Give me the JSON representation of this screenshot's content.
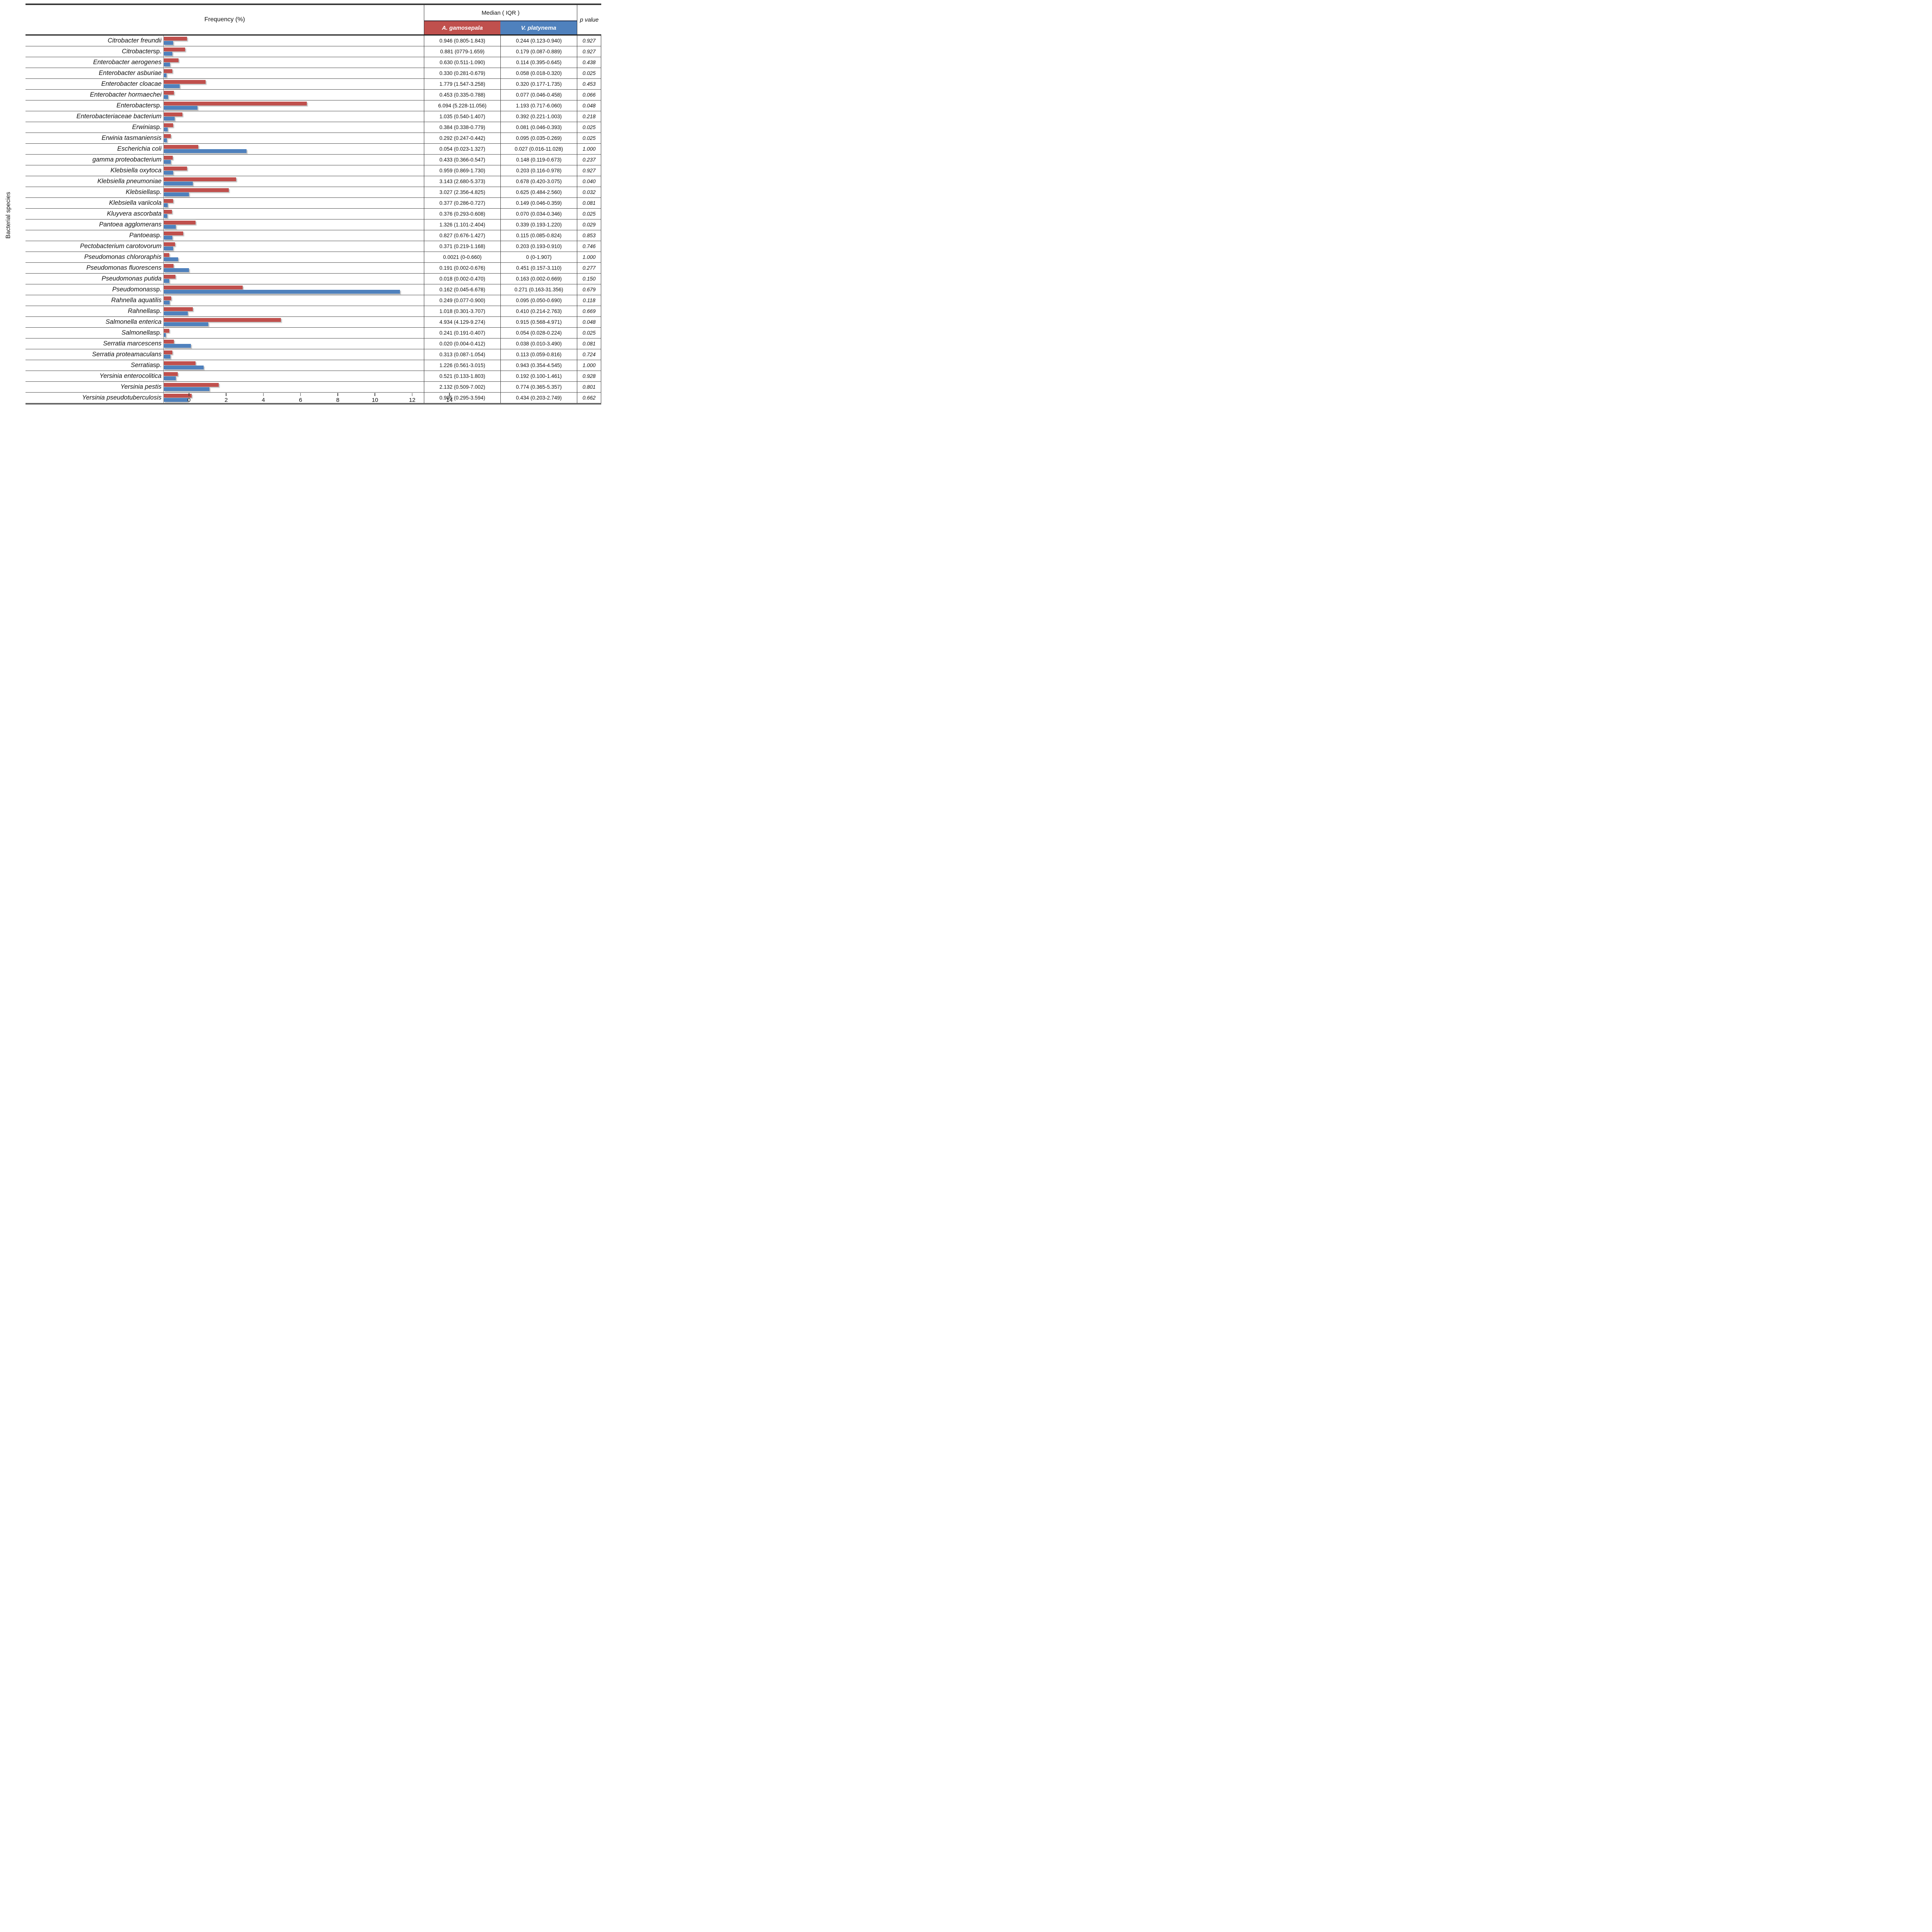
{
  "y_axis_label": "Bacterial species",
  "header": {
    "frequency_label": "Frequency (%)",
    "median_label": "Median ( IQR )",
    "group_a_label": "A. gamosepala",
    "group_b_label": "V. platynema",
    "p_label": "p value"
  },
  "colors": {
    "group_a": "#C0504D",
    "group_b": "#4F81BD",
    "axis_line": "#7f7f7f",
    "row_line": "#474747"
  },
  "x_axis": {
    "min": 0,
    "max": 14,
    "ticks": [
      0,
      2,
      4,
      6,
      8,
      10,
      12,
      14
    ]
  },
  "chart_data": {
    "type": "bar",
    "orientation": "horizontal",
    "title": "Frequency (%)",
    "xlabel": "Frequency (%)",
    "ylabel": "Bacterial species",
    "xlim": [
      0,
      14
    ],
    "grid": false,
    "categories": [
      "Citrobacter freundii",
      "Citrobacter sp.",
      "Enterobacter aerogenes",
      "Enterobacter asburiae",
      "Enterobacter cloacae",
      "Enterobacter hormaechei",
      "Enterobacter sp.",
      "Enterobacteriaceae bacterium",
      "Erwinia sp.",
      "Erwinia tasmaniensis",
      "Escherichia coli",
      "gamma proteobacterium",
      "Klebsiella oxytoca",
      "Klebsiella pneumoniae",
      "Klebsiella sp.",
      "Klebsiella variicola",
      "Kluyvera ascorbata",
      "Pantoea agglomerans",
      "Pantoea sp.",
      "Pectobacterium carotovorum",
      "Pseudomonas chlororaphis",
      "Pseudomonas fluorescens",
      "Pseudomonas putida",
      "Pseudomonas sp.",
      "Rahnella aquatilis",
      "Rahnella sp.",
      "Salmonella enterica",
      "Salmonella sp.",
      "Serratia marcescens",
      "Serratia proteamaculans",
      "Serratia sp.",
      "Yersinia enterocolitica",
      "Yersinia pestis",
      "Yersinia pseudotuberculosis"
    ],
    "series": [
      {
        "name": "A. gamosepala",
        "color": "#C0504D",
        "values": [
          1.25,
          1.15,
          0.8,
          0.45,
          2.25,
          0.55,
          7.7,
          1.0,
          0.5,
          0.37,
          1.85,
          0.47,
          1.25,
          3.9,
          3.5,
          0.5,
          0.44,
          1.7,
          1.05,
          0.6,
          0.3,
          0.53,
          0.63,
          4.25,
          0.4,
          1.55,
          6.3,
          0.3,
          0.55,
          0.45,
          1.7,
          0.75,
          2.95,
          1.5
        ]
      },
      {
        "name": "V. platynema",
        "color": "#4F81BD",
        "values": [
          0.5,
          0.45,
          0.33,
          0.15,
          0.85,
          0.22,
          1.8,
          0.58,
          0.2,
          0.17,
          4.45,
          0.37,
          0.5,
          1.55,
          1.35,
          0.2,
          0.19,
          0.65,
          0.45,
          0.5,
          0.78,
          1.35,
          0.3,
          12.7,
          0.32,
          1.3,
          2.4,
          0.1,
          1.45,
          0.35,
          2.15,
          0.65,
          2.45,
          1.3
        ]
      }
    ]
  },
  "rows": [
    {
      "name_italic": "Citrobacter freundii",
      "name_roman": "",
      "median_a": "0.946 (0.805-1.843)",
      "median_b": "0.244 (0.123-0.940)",
      "p": "0.927"
    },
    {
      "name_italic": "Citrobacter",
      "name_roman": " sp.",
      "median_a": "0.881 (0779-1.659)",
      "median_b": "0.179 (0.087-0.889)",
      "p": "0.927"
    },
    {
      "name_italic": "Enterobacter aerogenes",
      "name_roman": "",
      "median_a": "0.630 (0.511-1.090)",
      "median_b": "0.114 (0.395-0.645)",
      "p": "0.438"
    },
    {
      "name_italic": "Enterobacter asburiae",
      "name_roman": "",
      "median_a": "0.330 (0.281-0.679)",
      "median_b": "0.058 (0.018-0.320)",
      "p": "0.025"
    },
    {
      "name_italic": "Enterobacter cloacae",
      "name_roman": "",
      "median_a": "1.779 (1.547-3.258)",
      "median_b": "0.320 (0.177-1.735)",
      "p": "0.453"
    },
    {
      "name_italic": "Enterobacter hormaechei",
      "name_roman": "",
      "median_a": "0.453 (0.335-0.788)",
      "median_b": "0.077 (0.046-0.458)",
      "p": "0.066"
    },
    {
      "name_italic": "Enterobacter",
      "name_roman": " sp.",
      "median_a": "6.094 (5.228-11.056)",
      "median_b": "1.193 (0.717-6.060)",
      "p": "0.048"
    },
    {
      "name_italic": "Enterobacteriaceae bacterium",
      "name_roman": "",
      "median_a": "1.035 (0.540-1.407)",
      "median_b": "0.392 (0.221-1.003)",
      "p": "0.218"
    },
    {
      "name_italic": "Erwinia",
      "name_roman": " sp.",
      "median_a": "0.384 (0.338-0.779)",
      "median_b": "0.081 (0.046-0.393)",
      "p": "0.025"
    },
    {
      "name_italic": "Erwinia tasmaniensis",
      "name_roman": "",
      "median_a": "0.292 (0.247-0.442)",
      "median_b": "0.095 (0.035-0.269)",
      "p": "0.025"
    },
    {
      "name_italic": "Escherichia coli",
      "name_roman": "",
      "median_a": "0.054 (0.023-1.327)",
      "median_b": "0.027 (0.016-11.028)",
      "p": "1.000"
    },
    {
      "name_italic": "gamma proteobacterium",
      "name_roman": "",
      "median_a": "0.433 (0.366-0.547)",
      "median_b": "0.148 (0.119-0.673)",
      "p": "0.237"
    },
    {
      "name_italic": "Klebsiella oxytoca",
      "name_roman": "",
      "median_a": "0.959 (0.869-1.730)",
      "median_b": "0.203 (0.116-0.978)",
      "p": "0.927"
    },
    {
      "name_italic": "Klebsiella pneumoniae",
      "name_roman": "",
      "median_a": "3.143 (2.680-5.373)",
      "median_b": "0.678 (0.420-3.075)",
      "p": "0.040"
    },
    {
      "name_italic": "Klebsiella",
      "name_roman": " sp.",
      "median_a": "3.027 (2.356-4.825)",
      "median_b": "0.625 (0.484-2.560)",
      "p": "0.032"
    },
    {
      "name_italic": "Klebsiella variicola",
      "name_roman": "",
      "median_a": "0.377 (0.286-0.727)",
      "median_b": "0.149 (0.046-0.359)",
      "p": "0.081"
    },
    {
      "name_italic": "Kluyvera ascorbata",
      "name_roman": "",
      "median_a": "0.376 (0.293-0.608)",
      "median_b": "0.070 (0.034-0.346)",
      "p": "0.025"
    },
    {
      "name_italic": "Pantoea agglomerans",
      "name_roman": "",
      "median_a": "1.326 (1.101-2.404)",
      "median_b": "0.339 (0.193-1.220)",
      "p": "0.029"
    },
    {
      "name_italic": "Pantoea",
      "name_roman": " sp.",
      "median_a": "0.827 (0.676-1.427)",
      "median_b": "0.115 (0.085-0.824)",
      "p": "0.853"
    },
    {
      "name_italic": "Pectobacterium carotovorum",
      "name_roman": "",
      "median_a": "0.371 (0.219-1.168)",
      "median_b": "0.203 (0.193-0.910)",
      "p": "0.746"
    },
    {
      "name_italic": "Pseudomonas chlororaphis",
      "name_roman": "",
      "median_a": "0.0021 (0-0.660)",
      "median_b": "0 (0-1.907)",
      "p": "1.000"
    },
    {
      "name_italic": "Pseudomonas fluorescens",
      "name_roman": "",
      "median_a": "0.191 (0.002-0.676)",
      "median_b": "0.451 (0.157-3.110)",
      "p": "0.277"
    },
    {
      "name_italic": "Pseudomonas putida",
      "name_roman": "",
      "median_a": "0.018 (0.002-0.470)",
      "median_b": "0.163 (0.002-0.669)",
      "p": "0.150"
    },
    {
      "name_italic": "Pseudomonas",
      "name_roman": " sp.",
      "median_a": "0.162 (0.045-6.678)",
      "median_b": "0.271 (0.163-31.356)",
      "p": "0.679"
    },
    {
      "name_italic": "Rahnella aquatilis",
      "name_roman": "",
      "median_a": "0.249 (0.077-0.900)",
      "median_b": "0.095 (0.050-0.690)",
      "p": "0.118"
    },
    {
      "name_italic": "Rahnella",
      "name_roman": " sp.",
      "median_a": "1.018 (0.301-3.707)",
      "median_b": "0.410 (0.214-2.763)",
      "p": "0.669"
    },
    {
      "name_italic": "Salmonella enterica",
      "name_roman": "",
      "median_a": "4.934 (4.129-9.274)",
      "median_b": "0.915 (0.568-4.971)",
      "p": "0.048"
    },
    {
      "name_italic": "Salmonella",
      "name_roman": " sp.",
      "median_a": "0.241 (0.191-0.407)",
      "median_b": "0.054 (0.028-0.224)",
      "p": "0.025"
    },
    {
      "name_italic": "Serratia marcescens",
      "name_roman": "",
      "median_a": "0.020 (0.004-0.412)",
      "median_b": "0.038 (0.010-3.490)",
      "p": "0.081"
    },
    {
      "name_italic": "Serratia proteamaculans",
      "name_roman": "",
      "median_a": "0.313 (0.087-1.054)",
      "median_b": "0.113 (0.059-0.816)",
      "p": "0.724"
    },
    {
      "name_italic": "Serratia",
      "name_roman": " sp.",
      "median_a": "1.226 (0.561-3.015)",
      "median_b": "0.943 (0.354-4.545)",
      "p": "1.000"
    },
    {
      "name_italic": "Yersinia enterocolitica",
      "name_roman": "",
      "median_a": "0.521 (0.133-1.803)",
      "median_b": "0.192 (0.100-1.461)",
      "p": "0.928"
    },
    {
      "name_italic": "Yersinia pestis",
      "name_roman": "",
      "median_a": "2.132 (0.509-7.002)",
      "median_b": "0.774 (0.365-5.357)",
      "p": "0.801"
    },
    {
      "name_italic": "Yersinia pseudotuberculosis",
      "name_roman": "",
      "median_a": "0.995 (0.295-3.594)",
      "median_b": "0.434 (0.203-2.749)",
      "p": "0.662"
    }
  ]
}
